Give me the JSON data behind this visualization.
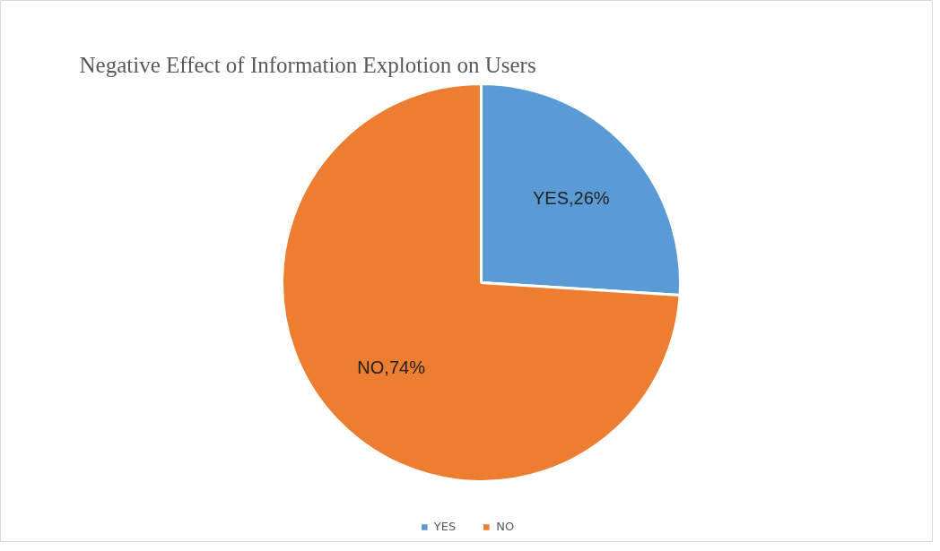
{
  "chart_data": {
    "type": "pie",
    "title": "Negative Effect of Information Explotion on Users",
    "categories": [
      "YES",
      "NO"
    ],
    "values": [
      26,
      74
    ],
    "colors": [
      "#5b9bd5",
      "#ed7d31"
    ],
    "value_labels": [
      "YES,26%",
      "NO,74%"
    ],
    "legend": "bottom"
  }
}
